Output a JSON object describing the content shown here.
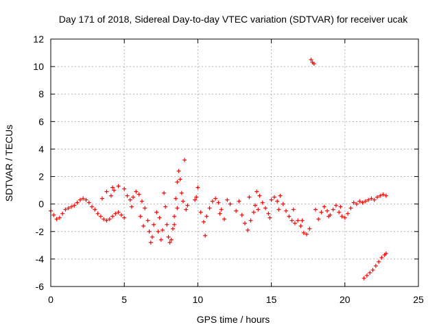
{
  "chart_data": {
    "type": "scatter",
    "title": "Day 171 of 2018, Sidereal Day-to-day VTEC variation (SDTVAR) for receiver ucak",
    "xlabel": "GPS time / hours",
    "ylabel": "SDTVAR / TECUs",
    "xlim": [
      0,
      25
    ],
    "ylim": [
      -6,
      12
    ],
    "xticks": [
      "0",
      "5",
      "10",
      "15",
      "20",
      "25"
    ],
    "yticks": [
      "-6",
      "-4",
      "-2",
      "0",
      "2",
      "4",
      "6",
      "8",
      "10",
      "12"
    ],
    "grid": true,
    "marker": "+",
    "series": [
      {
        "name": "SDTVAR",
        "color": "#ff0000",
        "points": [
          [
            0.0,
            -0.5
          ],
          [
            0.2,
            -0.8
          ],
          [
            0.4,
            -1.1
          ],
          [
            0.6,
            -1.0
          ],
          [
            0.8,
            -0.7
          ],
          [
            1.0,
            -0.4
          ],
          [
            1.2,
            -0.3
          ],
          [
            1.4,
            -0.2
          ],
          [
            1.6,
            -0.1
          ],
          [
            1.8,
            0.1
          ],
          [
            2.0,
            0.3
          ],
          [
            2.2,
            0.4
          ],
          [
            2.4,
            0.3
          ],
          [
            2.6,
            0.1
          ],
          [
            2.8,
            -0.2
          ],
          [
            3.0,
            -0.4
          ],
          [
            3.2,
            -0.7
          ],
          [
            3.4,
            -0.9
          ],
          [
            3.6,
            -1.1
          ],
          [
            3.8,
            -1.2
          ],
          [
            4.0,
            -1.1
          ],
          [
            4.2,
            -0.9
          ],
          [
            4.4,
            -0.7
          ],
          [
            4.6,
            -0.6
          ],
          [
            4.8,
            -0.8
          ],
          [
            5.0,
            -1.0
          ],
          [
            3.5,
            0.4
          ],
          [
            3.8,
            0.9
          ],
          [
            4.2,
            1.2
          ],
          [
            4.6,
            1.3
          ],
          [
            5.0,
            1.1
          ],
          [
            5.2,
            0.6
          ],
          [
            5.4,
            0.3
          ],
          [
            5.6,
            0.5
          ],
          [
            5.8,
            0.9
          ],
          [
            6.0,
            0.7
          ],
          [
            6.2,
            0.2
          ],
          [
            6.4,
            -0.3
          ],
          [
            6.6,
            -1.2
          ],
          [
            6.7,
            -2.0
          ],
          [
            6.8,
            -2.8
          ],
          [
            6.9,
            -2.4
          ],
          [
            7.0,
            -1.5
          ],
          [
            7.2,
            -0.6
          ],
          [
            7.4,
            -1.0
          ],
          [
            7.6,
            -1.9
          ],
          [
            7.7,
            0.8
          ],
          [
            7.8,
            -0.2
          ],
          [
            7.9,
            -1.5
          ],
          [
            8.0,
            -2.4
          ],
          [
            8.1,
            -2.8
          ],
          [
            8.2,
            -2.6
          ],
          [
            8.3,
            -1.8
          ],
          [
            8.4,
            -0.9
          ],
          [
            8.5,
            0.4
          ],
          [
            8.6,
            1.6
          ],
          [
            8.7,
            2.4
          ],
          [
            8.8,
            1.8
          ],
          [
            8.9,
            0.8
          ],
          [
            9.0,
            0.2
          ],
          [
            9.1,
            3.2
          ],
          [
            8.6,
            -0.3
          ],
          [
            8.4,
            -1.5
          ],
          [
            7.3,
            -2.0
          ],
          [
            7.5,
            -2.6
          ],
          [
            9.2,
            -0.4
          ],
          [
            9.8,
            0.3
          ],
          [
            9.9,
            0.5
          ],
          [
            10.0,
            1.2
          ],
          [
            10.2,
            -0.6
          ],
          [
            10.4,
            -1.3
          ],
          [
            10.5,
            -2.3
          ],
          [
            10.6,
            -0.9
          ],
          [
            10.8,
            -0.3
          ],
          [
            11.0,
            0.2
          ],
          [
            11.2,
            0.4
          ],
          [
            11.4,
            0.1
          ],
          [
            11.6,
            -0.4
          ],
          [
            11.8,
            -1.1
          ],
          [
            12.0,
            0.3
          ],
          [
            12.6,
            -0.5
          ],
          [
            12.8,
            0.2
          ],
          [
            13.0,
            -0.8
          ],
          [
            13.2,
            -1.4
          ],
          [
            13.4,
            -1.9
          ],
          [
            13.6,
            -1.2
          ],
          [
            13.8,
            -0.6
          ],
          [
            14.0,
            0.9
          ],
          [
            14.2,
            0.6
          ],
          [
            14.4,
            0.1
          ],
          [
            14.6,
            -0.3
          ],
          [
            14.8,
            -0.7
          ],
          [
            15.0,
            0.3
          ],
          [
            15.2,
            0.5
          ],
          [
            15.4,
            0.2
          ],
          [
            15.6,
            0.6
          ],
          [
            15.8,
            0.0
          ],
          [
            16.0,
            -0.5
          ],
          [
            16.2,
            -0.9
          ],
          [
            16.4,
            -1.2
          ],
          [
            16.6,
            -1.4
          ],
          [
            16.8,
            -1.2
          ],
          [
            17.0,
            -1.6
          ],
          [
            17.2,
            -2.1
          ],
          [
            17.4,
            -2.2
          ],
          [
            17.6,
            -1.8
          ],
          [
            17.7,
            10.5
          ],
          [
            17.8,
            10.3
          ],
          [
            17.9,
            10.2
          ],
          [
            18.2,
            -1.1
          ],
          [
            18.4,
            -0.6
          ],
          [
            18.6,
            -0.2
          ],
          [
            18.8,
            -0.5
          ],
          [
            19.0,
            -0.8
          ],
          [
            19.2,
            -0.4
          ],
          [
            19.4,
            -0.1
          ],
          [
            19.6,
            -0.6
          ],
          [
            19.8,
            -0.9
          ],
          [
            20.0,
            -1.0
          ],
          [
            20.2,
            -0.7
          ],
          [
            20.4,
            -0.3
          ],
          [
            20.6,
            0.1
          ],
          [
            20.8,
            0.0
          ],
          [
            21.0,
            0.2
          ],
          [
            21.2,
            0.1
          ],
          [
            21.4,
            0.2
          ],
          [
            21.6,
            0.3
          ],
          [
            21.8,
            0.4
          ],
          [
            22.0,
            0.3
          ],
          [
            22.2,
            0.5
          ],
          [
            22.4,
            0.6
          ],
          [
            22.6,
            0.7
          ],
          [
            22.8,
            0.6
          ],
          [
            21.3,
            -5.4
          ],
          [
            21.5,
            -5.2
          ],
          [
            21.7,
            -5.0
          ],
          [
            21.9,
            -4.8
          ],
          [
            22.1,
            -4.5
          ],
          [
            22.3,
            -4.2
          ],
          [
            22.5,
            -3.9
          ],
          [
            22.7,
            -3.7
          ],
          [
            22.8,
            -3.6
          ],
          [
            4.1,
            0.6
          ],
          [
            4.3,
            1.0
          ],
          [
            5.5,
            -0.2
          ],
          [
            6.1,
            -0.9
          ],
          [
            6.3,
            -1.6
          ],
          [
            9.3,
            -0.1
          ],
          [
            11.5,
            -0.7
          ],
          [
            12.2,
            0.0
          ],
          [
            13.5,
            0.5
          ],
          [
            13.9,
            -0.1
          ],
          [
            14.1,
            -0.4
          ],
          [
            14.9,
            -1.0
          ],
          [
            15.5,
            -0.4
          ],
          [
            16.5,
            -0.4
          ],
          [
            17.1,
            -1.2
          ],
          [
            18.0,
            -0.4
          ],
          [
            18.9,
            -0.9
          ],
          [
            19.7,
            -0.2
          ]
        ]
      }
    ]
  }
}
